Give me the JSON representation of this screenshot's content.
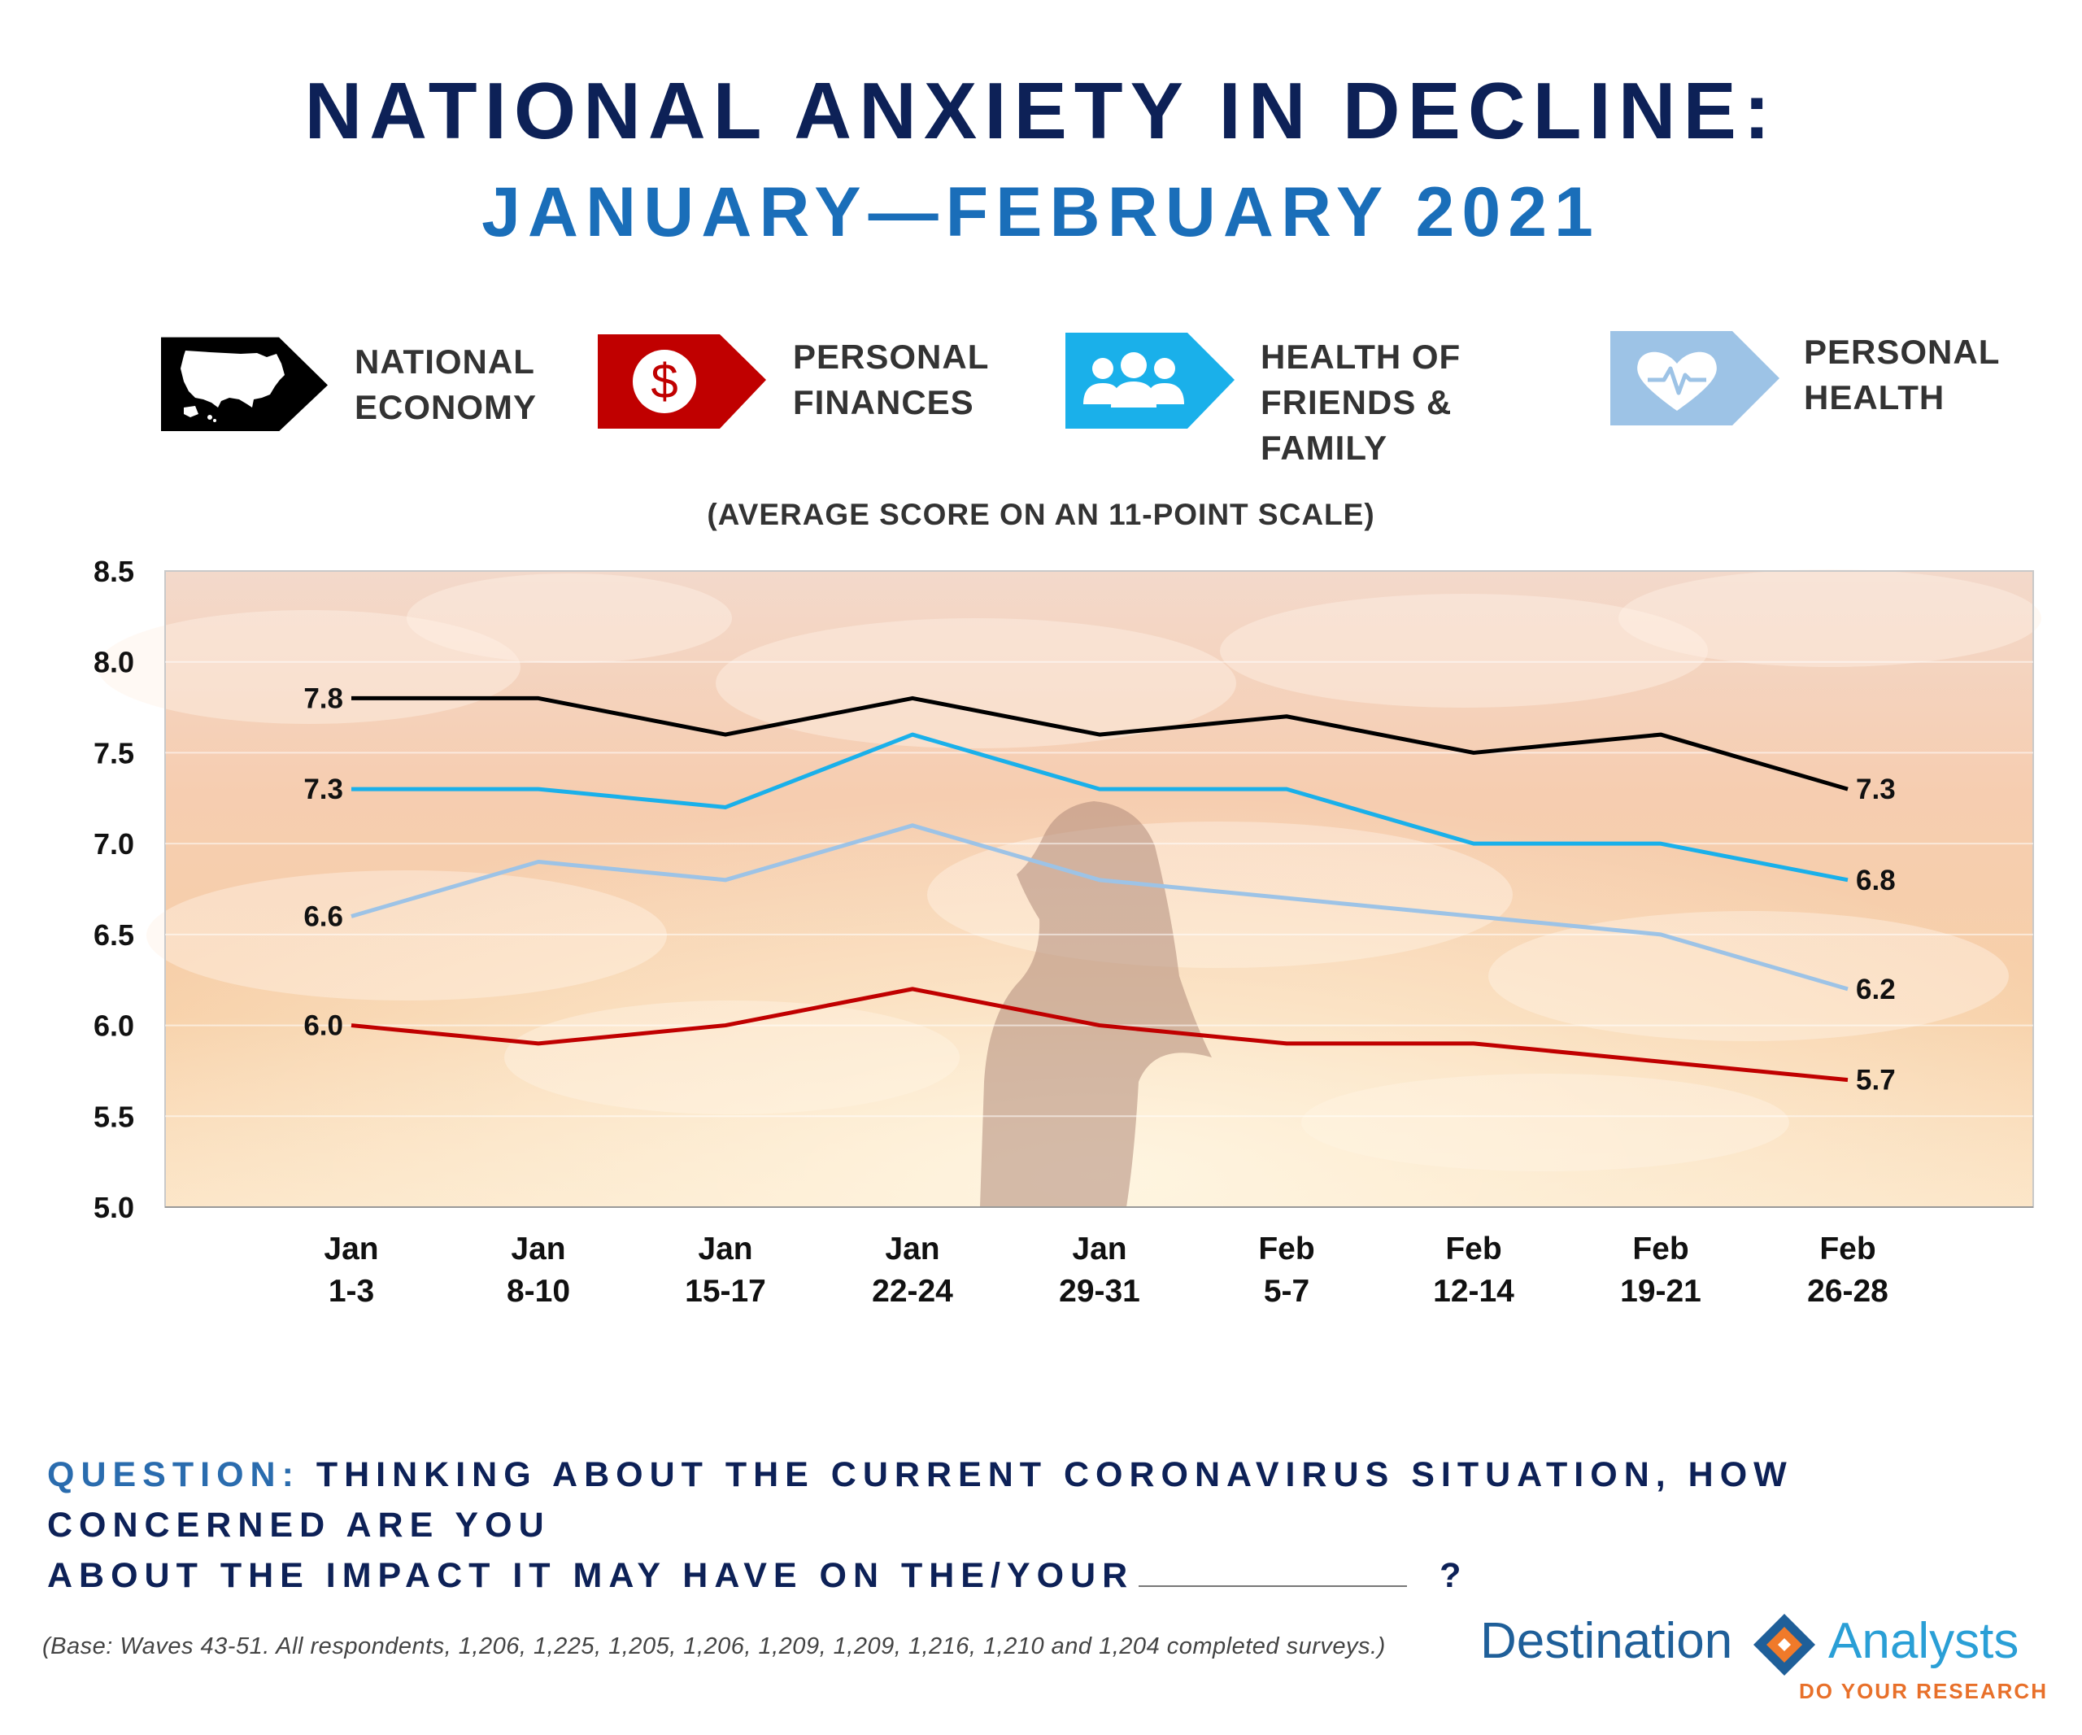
{
  "header": {
    "title": "NATIONAL ANXIETY IN DECLINE:",
    "subtitle": "JANUARY—FEBRUARY 2021"
  },
  "legend": [
    {
      "line1": "NATIONAL",
      "line2": "ECONOMY",
      "icon": "usa-map-icon",
      "color": "#000000"
    },
    {
      "line1": "PERSONAL",
      "line2": "FINANCES",
      "icon": "dollar-icon",
      "color": "#c00000"
    },
    {
      "line1": "HEALTH OF",
      "line2": "FRIENDS & FAMILY",
      "icon": "people-group-icon",
      "color": "#1ab0ea"
    },
    {
      "line1": "PERSONAL",
      "line2": "HEALTH",
      "icon": "heart-pulse-icon",
      "color": "#9dc3e6"
    }
  ],
  "chart_data": {
    "type": "line",
    "title": "(AVERAGE SCORE ON AN 11-POINT SCALE)",
    "categories": [
      [
        "Jan",
        "1-3"
      ],
      [
        "Jan",
        "8-10"
      ],
      [
        "Jan",
        "15-17"
      ],
      [
        "Jan",
        "22-24"
      ],
      [
        "Jan",
        "29-31"
      ],
      [
        "Feb",
        "5-7"
      ],
      [
        "Feb",
        "12-14"
      ],
      [
        "Feb",
        "19-21"
      ],
      [
        "Feb",
        "26-28"
      ]
    ],
    "ylim": [
      5.0,
      8.5
    ],
    "yticks": [
      "5.0",
      "5.5",
      "6.0",
      "6.5",
      "7.0",
      "7.5",
      "8.0",
      "8.5"
    ],
    "grid": true,
    "series": [
      {
        "name": "National Economy",
        "color": "#000000",
        "values": [
          7.8,
          7.8,
          7.6,
          7.8,
          7.6,
          7.7,
          7.5,
          7.6,
          7.3
        ],
        "start_label": "7.8",
        "end_label": "7.3"
      },
      {
        "name": "Health of Friends & Family",
        "color": "#1ab0ea",
        "values": [
          7.3,
          7.3,
          7.2,
          7.6,
          7.3,
          7.3,
          7.0,
          7.0,
          6.8
        ],
        "start_label": "7.3",
        "end_label": "6.8"
      },
      {
        "name": "Personal Health",
        "color": "#9dc3e6",
        "values": [
          6.6,
          6.9,
          6.8,
          7.1,
          6.8,
          6.7,
          6.6,
          6.5,
          6.2
        ],
        "start_label": "6.6",
        "end_label": "6.2"
      },
      {
        "name": "Personal Finances",
        "color": "#c00000",
        "values": [
          6.0,
          5.9,
          6.0,
          6.2,
          6.0,
          5.9,
          5.9,
          5.8,
          5.7
        ],
        "start_label": "6.0",
        "end_label": "5.7"
      }
    ]
  },
  "question": {
    "label": "QUESTION:",
    "text1": "THINKING ABOUT THE CURRENT CORONAVIRUS SITUATION, HOW CONCERNED ARE YOU",
    "text2": "ABOUT THE IMPACT IT MAY HAVE ON THE/YOUR",
    "end": "?"
  },
  "footnote": "(Base: Waves 43-51.  All respondents, 1,206, 1,225, 1,205, 1,206, 1,209, 1,209, 1,216, 1,210 and 1,204 completed surveys.)",
  "logo": {
    "word1": "Destination",
    "word2": "Analysts",
    "tagline": "DO YOUR RESEARCH"
  }
}
